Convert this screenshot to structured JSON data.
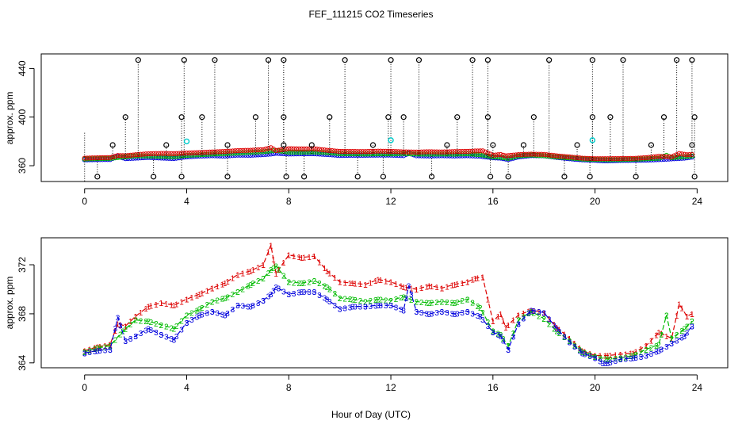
{
  "figure": {
    "title": "FEF_111215  CO2 Timeseries",
    "xlabel": "Hour of Day (UTC)"
  },
  "colors": {
    "series1": "#dd0000",
    "series2": "#00bb00",
    "series3": "#0000dd",
    "outlier": "#000000",
    "flag": "#00cccc"
  },
  "chart_data": [
    {
      "type": "scatter",
      "name": "top-panel",
      "ylabel": "approx. ppm",
      "xlim": [
        -1.7,
        25.2
      ],
      "ylim": [
        347,
        452
      ],
      "xticks": [
        0,
        4,
        8,
        12,
        16,
        20,
        24
      ],
      "yticks": [
        360,
        400,
        440
      ],
      "legend": "none",
      "outlier_high": [
        2.1,
        3.9,
        5.1,
        7.2,
        7.8,
        10.2,
        12.0,
        13.1,
        15.2,
        15.8,
        18.2,
        19.9,
        21.1,
        23.2,
        23.8
      ],
      "outlier_mid": [
        1.6,
        3.8,
        4.6,
        6.7,
        7.8,
        9.6,
        11.9,
        12.5,
        14.6,
        15.8,
        17.6,
        19.9,
        20.6,
        22.7,
        23.9
      ],
      "outlier_low_tick": [
        1.1,
        3.2,
        5.6,
        7.8,
        8.9,
        11.3,
        14.2,
        16.0,
        17.2,
        19.3,
        22.2,
        23.8
      ],
      "outlier_low": [
        0.5,
        2.7,
        3.8,
        5.6,
        7.9,
        8.6,
        10.7,
        11.7,
        13.6,
        15.9,
        16.6,
        18.8,
        19.8,
        21.6,
        23.9
      ],
      "cyan_flags": [
        {
          "x": 4.0,
          "y": 380
        },
        {
          "x": 12.0,
          "y": 381
        },
        {
          "x": 19.9,
          "y": 381
        }
      ],
      "series": [
        {
          "name": "1",
          "offset": 1.2
        },
        {
          "name": "2",
          "offset": 0.6
        },
        {
          "name": "3",
          "offset": 0
        }
      ]
    },
    {
      "type": "line",
      "name": "bottom-panel",
      "ylabel": "approx. ppm",
      "xlim": [
        -1.7,
        25.2
      ],
      "ylim": [
        363.6,
        374.2
      ],
      "xticks": [
        0,
        4,
        8,
        12,
        16,
        20,
        24
      ],
      "yticks": [
        364,
        368,
        372
      ],
      "legend": "none",
      "series": [
        {
          "name": "1",
          "label": "1",
          "x": [
            0,
            0.5,
            1.0,
            1.3,
            1.6,
            2.0,
            2.5,
            3.0,
            3.5,
            4.0,
            4.5,
            5.0,
            5.5,
            6.0,
            6.5,
            7.0,
            7.3,
            7.5,
            8.0,
            8.5,
            9.0,
            9.5,
            10.0,
            10.5,
            11.0,
            11.5,
            12.0,
            12.5,
            13.0,
            13.5,
            14.0,
            14.5,
            15.0,
            15.3,
            15.6,
            16.0,
            16.3,
            16.5,
            17.0,
            17.5,
            18.0,
            18.5,
            19.0,
            19.5,
            20.0,
            20.5,
            21.0,
            21.5,
            22.0,
            22.5,
            23.0,
            23.3,
            23.6,
            23.8
          ],
          "y": [
            365.0,
            365.3,
            365.5,
            367.2,
            367.0,
            367.8,
            368.6,
            368.9,
            368.7,
            369.2,
            369.6,
            370.1,
            370.5,
            371.2,
            371.5,
            372.0,
            373.6,
            371.3,
            372.8,
            372.6,
            372.7,
            371.5,
            370.6,
            370.5,
            370.4,
            370.8,
            370.6,
            370.2,
            370.0,
            370.3,
            370.1,
            370.4,
            370.6,
            370.9,
            371.0,
            367.4,
            368.0,
            366.9,
            367.9,
            368.3,
            368.1,
            366.9,
            366.0,
            365.0,
            364.6,
            364.6,
            364.7,
            364.8,
            365.4,
            366.5,
            366.0,
            368.8,
            367.8,
            368.0
          ]
        },
        {
          "name": "2",
          "label": "2",
          "x": [
            0,
            0.5,
            1.0,
            1.5,
            2.0,
            2.5,
            3.0,
            3.5,
            4.0,
            4.5,
            5.0,
            5.5,
            6.0,
            6.5,
            7.0,
            7.3,
            7.5,
            8.0,
            8.5,
            9.0,
            9.5,
            10.0,
            10.5,
            11.0,
            11.5,
            12.0,
            12.5,
            13.0,
            13.5,
            14.0,
            14.5,
            15.0,
            15.5,
            16.0,
            16.3,
            16.6,
            17.0,
            17.5,
            18.0,
            18.5,
            19.0,
            19.5,
            20.0,
            20.5,
            21.0,
            21.5,
            22.0,
            22.5,
            22.8,
            23.0,
            23.5,
            23.8
          ],
          "y": [
            364.9,
            365.2,
            365.4,
            366.6,
            367.5,
            367.4,
            367.1,
            366.8,
            367.9,
            368.4,
            369.0,
            369.3,
            369.8,
            370.4,
            370.9,
            371.6,
            371.9,
            370.6,
            370.5,
            370.7,
            370.2,
            369.3,
            369.2,
            369.0,
            369.2,
            369.1,
            369.4,
            369.0,
            368.9,
            369.0,
            368.9,
            369.2,
            368.5,
            366.6,
            366.3,
            365.4,
            367.5,
            368.2,
            367.6,
            366.6,
            365.8,
            364.9,
            364.5,
            364.3,
            364.4,
            364.6,
            365.1,
            365.5,
            367.9,
            366.0,
            366.8,
            367.4
          ]
        },
        {
          "name": "3",
          "label": "3",
          "x": [
            0,
            0.5,
            1.0,
            1.3,
            1.6,
            2.0,
            2.5,
            3.0,
            3.5,
            4.0,
            4.5,
            5.0,
            5.5,
            6.0,
            6.5,
            7.0,
            7.3,
            7.5,
            8.0,
            8.5,
            9.0,
            9.5,
            10.0,
            10.5,
            11.0,
            11.5,
            12.0,
            12.5,
            12.7,
            13.0,
            13.5,
            14.0,
            14.5,
            15.0,
            15.5,
            16.0,
            16.3,
            16.6,
            17.0,
            17.5,
            18.0,
            18.5,
            19.0,
            19.5,
            20.0,
            20.3,
            20.5,
            21.0,
            21.5,
            22.0,
            22.5,
            23.0,
            23.5,
            23.8
          ],
          "y": [
            364.8,
            365.0,
            365.1,
            367.7,
            365.8,
            366.2,
            366.8,
            366.3,
            365.9,
            367.3,
            367.9,
            368.2,
            367.9,
            368.7,
            368.6,
            369.1,
            369.6,
            370.2,
            369.6,
            369.8,
            369.8,
            369.2,
            368.4,
            368.6,
            368.6,
            368.7,
            368.7,
            368.3,
            370.3,
            368.2,
            368.0,
            368.2,
            368.0,
            368.2,
            367.8,
            366.5,
            366.2,
            365.1,
            367.2,
            368.3,
            368.1,
            366.8,
            365.7,
            364.8,
            364.4,
            364.0,
            364.0,
            364.3,
            364.4,
            364.6,
            365.0,
            365.6,
            366.2,
            367.0
          ]
        }
      ]
    }
  ]
}
